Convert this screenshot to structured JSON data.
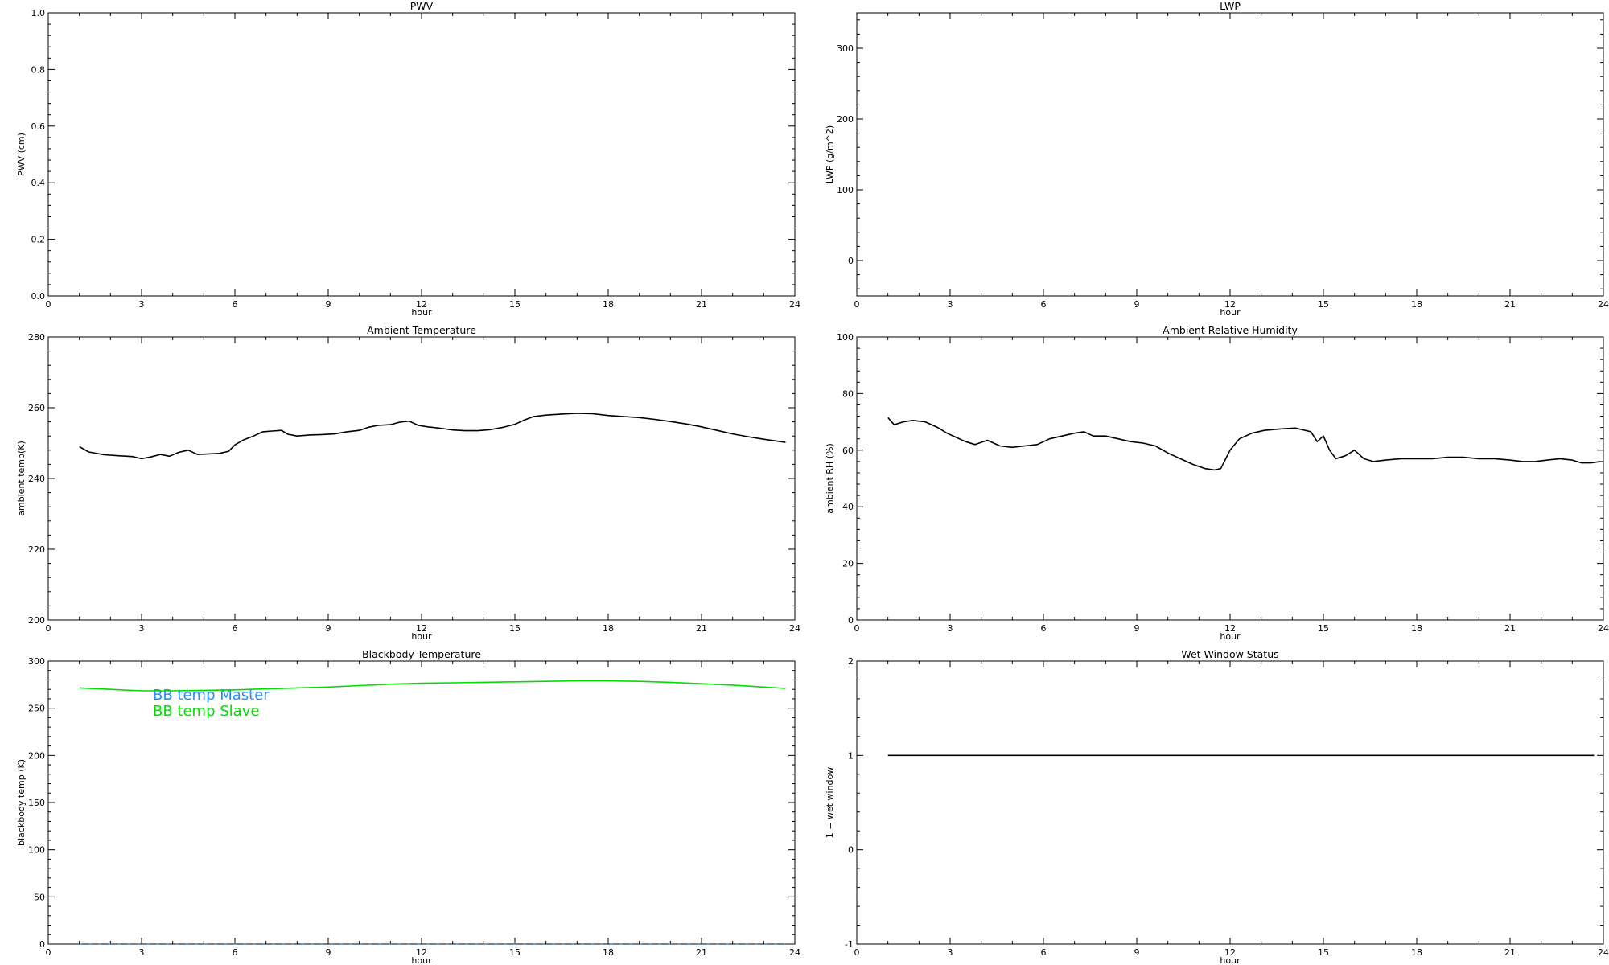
{
  "chart_data": [
    {
      "id": "pwv",
      "type": "line",
      "title": "PWV",
      "xlabel": "hour",
      "ylabel": "PWV (cm)",
      "xlim": [
        0,
        24
      ],
      "ylim": [
        0,
        1
      ],
      "xticks": [
        0,
        3,
        6,
        9,
        12,
        15,
        18,
        21,
        24
      ],
      "yticks": [
        0.0,
        0.2,
        0.4,
        0.6,
        0.8,
        1.0
      ],
      "ytick_decimals": 1,
      "series": []
    },
    {
      "id": "lwp",
      "type": "line",
      "title": "LWP",
      "xlabel": "hour",
      "ylabel": "LWP (g/m^2)",
      "xlim": [
        0,
        24
      ],
      "ylim": [
        -50,
        350
      ],
      "xticks": [
        0,
        3,
        6,
        9,
        12,
        15,
        18,
        21,
        24
      ],
      "yticks": [
        0,
        100,
        200,
        300
      ],
      "ytick_decimals": 0,
      "series": []
    },
    {
      "id": "ambient-temp",
      "type": "line",
      "title": "Ambient Temperature",
      "xlabel": "hour",
      "ylabel": "ambient temp(K)",
      "xlim": [
        0,
        24
      ],
      "ylim": [
        200,
        280
      ],
      "xticks": [
        0,
        3,
        6,
        9,
        12,
        15,
        18,
        21,
        24
      ],
      "yticks": [
        200,
        220,
        240,
        260,
        280
      ],
      "ytick_decimals": 0,
      "series": [
        {
          "color": "#000000",
          "x": [
            1.0,
            1.3,
            1.8,
            2.3,
            2.7,
            3.0,
            3.3,
            3.6,
            3.9,
            4.2,
            4.5,
            4.8,
            5.1,
            5.5,
            5.8,
            6.0,
            6.3,
            6.6,
            6.9,
            7.2,
            7.5,
            7.7,
            8.0,
            8.4,
            8.8,
            9.2,
            9.6,
            10.0,
            10.3,
            10.6,
            11.0,
            11.3,
            11.6,
            11.9,
            12.2,
            12.6,
            13.0,
            13.4,
            13.8,
            14.2,
            14.6,
            15.0,
            15.3,
            15.6,
            16.0,
            16.5,
            17.0,
            17.5,
            18.0,
            18.5,
            19.0,
            19.5,
            20.0,
            20.5,
            21.0,
            21.5,
            22.0,
            22.5,
            23.0,
            23.7
          ],
          "y": [
            249,
            247.5,
            246.7,
            246.4,
            246.2,
            245.6,
            246.1,
            246.8,
            246.3,
            247.4,
            248.0,
            246.8,
            246.9,
            247.1,
            247.7,
            249.5,
            251.0,
            252.0,
            253.2,
            253.4,
            253.6,
            252.5,
            252.0,
            252.3,
            252.4,
            252.6,
            253.2,
            253.6,
            254.5,
            255.0,
            255.2,
            255.9,
            256.2,
            255.0,
            254.6,
            254.2,
            253.7,
            253.5,
            253.5,
            253.8,
            254.4,
            255.3,
            256.5,
            257.5,
            257.9,
            258.2,
            258.4,
            258.3,
            257.8,
            257.5,
            257.2,
            256.7,
            256.1,
            255.4,
            254.6,
            253.6,
            252.6,
            251.8,
            251.1,
            250.2
          ]
        }
      ]
    },
    {
      "id": "ambient-rh",
      "type": "line",
      "title": "Ambient Relative Humidity",
      "xlabel": "hour",
      "ylabel": "ambient RH (%)",
      "xlim": [
        0,
        24
      ],
      "ylim": [
        0,
        100
      ],
      "xticks": [
        0,
        3,
        6,
        9,
        12,
        15,
        18,
        21,
        24
      ],
      "yticks": [
        0,
        20,
        40,
        60,
        80,
        100
      ],
      "ytick_decimals": 0,
      "series": [
        {
          "color": "#000000",
          "x": [
            1.0,
            1.2,
            1.5,
            1.8,
            2.2,
            2.6,
            2.9,
            3.2,
            3.5,
            3.8,
            4.2,
            4.6,
            5.0,
            5.4,
            5.8,
            6.2,
            6.6,
            7.0,
            7.3,
            7.6,
            8.0,
            8.4,
            8.8,
            9.2,
            9.6,
            10.0,
            10.4,
            10.8,
            11.2,
            11.5,
            11.7,
            12.0,
            12.3,
            12.7,
            13.1,
            13.6,
            14.1,
            14.6,
            14.8,
            15.0,
            15.2,
            15.4,
            15.7,
            16.0,
            16.3,
            16.6,
            17.0,
            17.5,
            18.0,
            18.5,
            19.0,
            19.5,
            20.0,
            20.5,
            21.0,
            21.4,
            21.8,
            22.2,
            22.6,
            23.0,
            23.3,
            23.6,
            23.9
          ],
          "y": [
            71.5,
            69,
            70,
            70.5,
            70,
            68,
            66,
            64.5,
            63,
            62,
            63.5,
            61.5,
            61,
            61.5,
            62,
            64,
            65,
            66,
            66.5,
            65,
            65,
            64,
            63,
            62.5,
            61.5,
            59,
            57,
            55,
            53.5,
            53,
            53.5,
            60,
            64,
            66,
            67,
            67.5,
            67.8,
            66.5,
            63,
            65,
            60,
            57,
            58,
            60,
            57,
            56,
            56.5,
            57,
            57,
            57,
            57.5,
            57.5,
            57,
            57,
            56.5,
            56,
            56,
            56.5,
            57,
            56.5,
            55.5,
            55.5,
            56
          ]
        }
      ]
    },
    {
      "id": "blackbody-temp",
      "type": "line",
      "title": "Blackbody Temperature",
      "xlabel": "hour",
      "ylabel": "blackbody temp (K)",
      "xlim": [
        0,
        24
      ],
      "ylim": [
        0,
        300
      ],
      "xticks": [
        0,
        3,
        6,
        9,
        12,
        15,
        18,
        21,
        24
      ],
      "yticks": [
        0,
        50,
        100,
        150,
        200,
        250,
        300
      ],
      "ytick_decimals": 0,
      "series": [
        {
          "name": "BB temp Master",
          "color": "#1e90ff",
          "dashed": true,
          "x": [
            1.0,
            23.7
          ],
          "y": [
            0,
            0
          ]
        },
        {
          "name": "BB temp Slave",
          "color": "#00dd00",
          "x": [
            1.0,
            2.0,
            3.0,
            4.0,
            5.0,
            6.0,
            7.0,
            8.0,
            9.0,
            10.0,
            11.0,
            12.0,
            13.0,
            14.0,
            15.0,
            16.0,
            17.0,
            18.0,
            19.0,
            20.0,
            21.0,
            22.0,
            23.0,
            23.7
          ],
          "y": [
            271.5,
            270,
            268.5,
            268.5,
            269,
            269.5,
            270.5,
            271.5,
            272.5,
            274,
            275.5,
            276.5,
            277,
            277.5,
            278,
            278.5,
            279,
            279,
            278.5,
            277.5,
            276,
            274.5,
            272.5,
            271
          ]
        }
      ]
    },
    {
      "id": "wet-window",
      "type": "line",
      "title": "Wet Window Status",
      "xlabel": "hour",
      "ylabel": "1 = wet window",
      "xlim": [
        0,
        24
      ],
      "ylim": [
        -1,
        2
      ],
      "xticks": [
        0,
        3,
        6,
        9,
        12,
        15,
        18,
        21,
        24
      ],
      "yticks": [
        -1,
        0,
        1,
        2
      ],
      "ytick_decimals": 0,
      "series": [
        {
          "color": "#000000",
          "x": [
            1.0,
            23.7
          ],
          "y": [
            1,
            1
          ]
        }
      ]
    }
  ]
}
